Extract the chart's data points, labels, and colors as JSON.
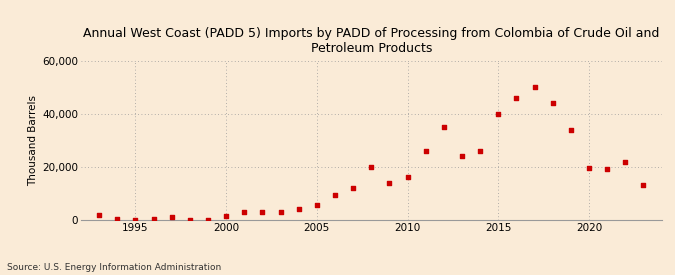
{
  "title": "Annual West Coast (PADD 5) Imports by PADD of Processing from Colombia of Crude Oil and\nPetroleum Products",
  "ylabel": "Thousand Barrels",
  "source": "Source: U.S. Energy Information Administration",
  "background_color": "#faebd7",
  "dot_color": "#cc0000",
  "years": [
    1993,
    1994,
    1995,
    1996,
    1997,
    1998,
    1999,
    2000,
    2001,
    2002,
    2003,
    2004,
    2005,
    2006,
    2007,
    2008,
    2009,
    2010,
    2011,
    2012,
    2013,
    2014,
    2015,
    2016,
    2017,
    2018,
    2019,
    2020,
    2021,
    2022,
    2023
  ],
  "values": [
    1800,
    300,
    100,
    200,
    1200,
    100,
    100,
    1500,
    3000,
    3000,
    3000,
    4000,
    5500,
    9500,
    12000,
    20000,
    14000,
    16000,
    26000,
    35000,
    24000,
    26000,
    40000,
    46000,
    50000,
    44000,
    34000,
    19500,
    19000,
    22000,
    13000
  ],
  "xlim": [
    1992,
    2024
  ],
  "ylim": [
    0,
    60000
  ],
  "yticks": [
    0,
    20000,
    40000,
    60000
  ],
  "xticks": [
    1995,
    2000,
    2005,
    2010,
    2015,
    2020
  ],
  "title_fontsize": 9,
  "ylabel_fontsize": 7.5,
  "tick_fontsize": 7.5,
  "source_fontsize": 6.5,
  "marker_size": 12
}
